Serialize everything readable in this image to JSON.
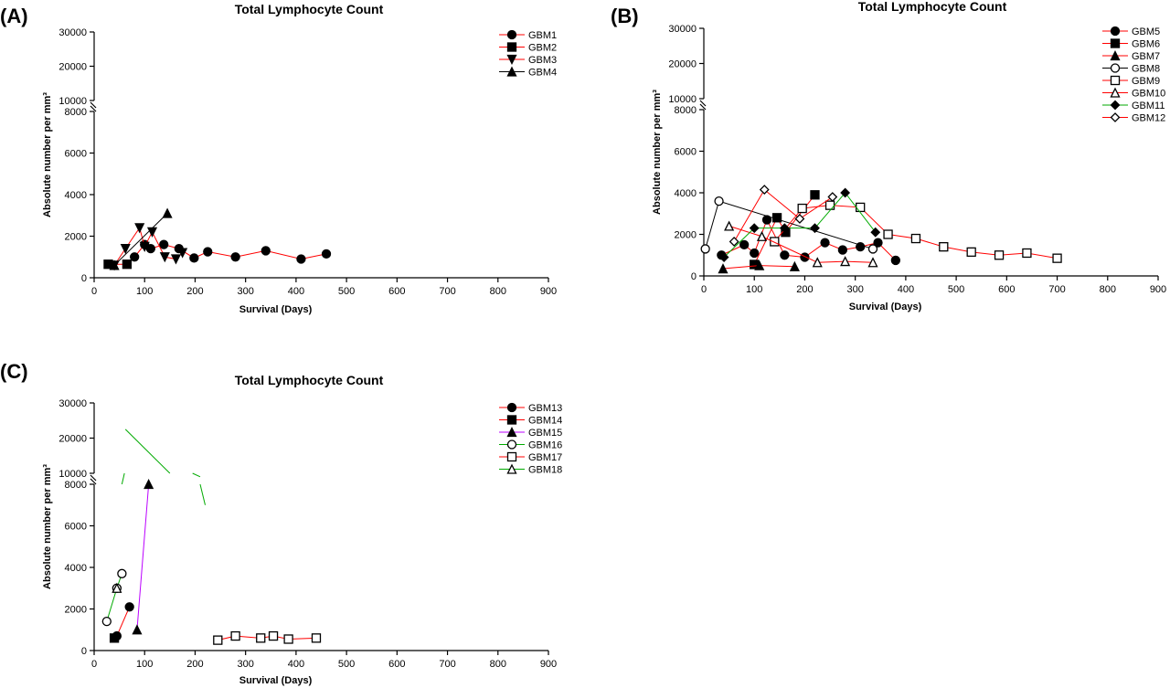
{
  "chart_data": [
    {
      "type": "line",
      "panel": "(A)",
      "title": "Total Lymphocyte Count",
      "xlabel": "Survival (Days)",
      "ylabel": "Absolute number per mm³",
      "xlim": [
        0,
        900
      ],
      "ylim_lower": [
        0,
        8000
      ],
      "ylim_upper": [
        10000,
        30000
      ],
      "x_ticks": [
        0,
        100,
        200,
        300,
        400,
        500,
        600,
        700,
        800,
        900
      ],
      "y_ticks_lower": [
        0,
        2000,
        4000,
        6000,
        8000
      ],
      "y_ticks_upper": [
        10000,
        20000,
        30000
      ],
      "legend_position": "top-right",
      "series": [
        {
          "name": "GBM1",
          "marker": "circle-filled",
          "color": "#ff0000",
          "marker_color": "#000000",
          "x": [
            80,
            100,
            112,
            138,
            168,
            198,
            225,
            280,
            340,
            410,
            460
          ],
          "y": [
            1000,
            1600,
            1400,
            1600,
            1400,
            950,
            1250,
            1000,
            1300,
            900,
            1150
          ]
        },
        {
          "name": "GBM2",
          "marker": "square-filled",
          "color": "#ff0000",
          "marker_color": "#000000",
          "x": [
            28,
            65
          ],
          "y": [
            650,
            650
          ]
        },
        {
          "name": "GBM3",
          "marker": "triangle-down-filled",
          "color": "#ff0000",
          "marker_color": "#000000",
          "x": [
            40,
            62,
            90,
            100,
            115,
            140,
            162,
            175
          ],
          "y": [
            600,
            1400,
            2400,
            1500,
            2200,
            1000,
            900,
            1200
          ]
        },
        {
          "name": "GBM4",
          "marker": "triangle-up-filled",
          "color": "#000000",
          "marker_color": "#000000",
          "x": [
            40,
            145
          ],
          "y": [
            600,
            3100
          ]
        }
      ]
    },
    {
      "type": "line",
      "panel": "(B)",
      "title": "Total Lymphocyte Count",
      "xlabel": "Survival (Days)",
      "ylabel": "Absolute number per mm³",
      "xlim": [
        0,
        900
      ],
      "ylim_lower": [
        0,
        8000
      ],
      "ylim_upper": [
        10000,
        30000
      ],
      "x_ticks": [
        0,
        100,
        200,
        300,
        400,
        500,
        600,
        700,
        800,
        900
      ],
      "y_ticks_lower": [
        0,
        2000,
        4000,
        6000,
        8000
      ],
      "y_ticks_upper": [
        10000,
        20000,
        30000
      ],
      "legend_position": "top-right",
      "series": [
        {
          "name": "GBM5",
          "marker": "circle-filled",
          "color": "#ff0000",
          "marker_color": "#000000",
          "x": [
            35,
            80,
            100,
            125,
            160,
            200,
            240,
            275,
            310,
            345,
            380
          ],
          "y": [
            1000,
            1500,
            1100,
            2700,
            1000,
            900,
            1600,
            1250,
            1400,
            1600,
            750
          ]
        },
        {
          "name": "GBM6",
          "marker": "square-filled",
          "color": "#ff0000",
          "marker_color": "#000000",
          "x": [
            100,
            145,
            162,
            220
          ],
          "y": [
            550,
            2800,
            2100,
            3900
          ]
        },
        {
          "name": "GBM7",
          "marker": "triangle-up-filled",
          "color": "#ff0000",
          "marker_color": "#000000",
          "x": [
            38,
            110,
            180
          ],
          "y": [
            350,
            500,
            450
          ]
        },
        {
          "name": "GBM8",
          "marker": "circle-open",
          "color": "#000000",
          "marker_color": "#000000",
          "x": [
            3,
            30,
            335
          ],
          "y": [
            1300,
            3600,
            1300
          ]
        },
        {
          "name": "GBM9",
          "marker": "square-open",
          "color": "#ff0000",
          "marker_color": "#000000",
          "x": [
            140,
            195,
            250,
            310,
            365,
            420,
            475,
            530,
            585,
            640,
            700
          ],
          "y": [
            1650,
            3250,
            3400,
            3300,
            2000,
            1800,
            1400,
            1150,
            1000,
            1100,
            850
          ]
        },
        {
          "name": "GBM10",
          "marker": "triangle-up-open",
          "color": "#ff0000",
          "marker_color": "#000000",
          "x": [
            50,
            115,
            225,
            280,
            335
          ],
          "y": [
            2400,
            1900,
            650,
            700,
            650
          ]
        },
        {
          "name": "GBM11",
          "marker": "diamond-filled",
          "color": "#00aa00",
          "marker_color": "#000000",
          "x": [
            40,
            100,
            160,
            220,
            280,
            340
          ],
          "y": [
            900,
            2300,
            2300,
            2300,
            4000,
            2100
          ]
        },
        {
          "name": "GBM12",
          "marker": "diamond-open",
          "color": "#ff0000",
          "marker_color": "#000000",
          "x": [
            60,
            120,
            190,
            255
          ],
          "y": [
            1650,
            4150,
            2750,
            3800
          ]
        }
      ]
    },
    {
      "type": "line",
      "panel": "(C)",
      "title": "Total Lymphocyte Count",
      "xlabel": "Survival (Days)",
      "ylabel": "Absolute number per mm³",
      "xlim": [
        0,
        900
      ],
      "ylim_lower": [
        0,
        8000
      ],
      "ylim_upper": [
        10000,
        30000
      ],
      "x_ticks": [
        0,
        100,
        200,
        300,
        400,
        500,
        600,
        700,
        800,
        900
      ],
      "y_ticks_lower": [
        0,
        2000,
        4000,
        6000,
        8000
      ],
      "y_ticks_upper": [
        10000,
        20000,
        30000
      ],
      "legend_position": "top-right",
      "series": [
        {
          "name": "GBM13",
          "marker": "circle-filled",
          "color": "#ff0000",
          "marker_color": "#000000",
          "x": [
            45,
            70
          ],
          "y": [
            700,
            2100
          ]
        },
        {
          "name": "GBM14",
          "marker": "square-filled",
          "color": "#ff0000",
          "marker_color": "#000000",
          "x": [
            40
          ],
          "y": [
            600
          ]
        },
        {
          "name": "GBM15",
          "marker": "triangle-up-filled",
          "color": "#bb00ff",
          "marker_color": "#000000",
          "x": [
            85,
            108
          ],
          "y": [
            1000,
            8000
          ]
        },
        {
          "name": "GBM16",
          "marker": "circle-open",
          "color": "#00aa00",
          "marker_color": "#000000",
          "x": [
            25,
            45,
            55
          ],
          "y": [
            1400,
            3000,
            3700
          ]
        },
        {
          "name": "GBM17",
          "marker": "square-open",
          "color": "#ff0000",
          "marker_color": "#000000",
          "x": [
            245,
            280,
            330,
            355,
            385,
            440
          ],
          "y": [
            500,
            700,
            600,
            700,
            550,
            600
          ]
        },
        {
          "name": "GBM18",
          "marker": "triangle-up-open",
          "color": "#00aa00",
          "marker_color": "#000000",
          "x": [
            45
          ],
          "y": [
            3000
          ],
          "segments": [
            {
              "x": [
                55,
                60
              ],
              "y": [
                8000,
                10000
              ]
            },
            {
              "x": [
                62,
                150
              ],
              "y": [
                22500,
                10000
              ]
            },
            {
              "x": [
                195,
                210
              ],
              "y": [
                10000,
                9000
              ]
            },
            {
              "x": [
                210,
                220
              ],
              "y": [
                8000,
                7000
              ]
            }
          ]
        }
      ]
    }
  ]
}
